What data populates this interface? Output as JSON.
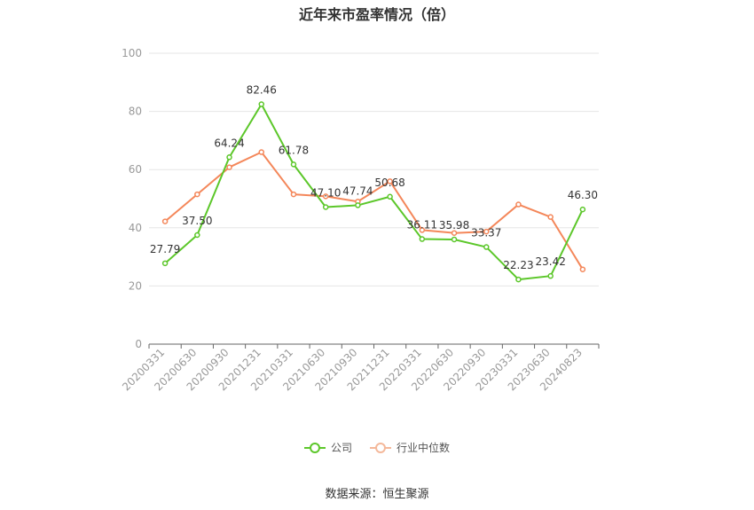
{
  "chart_data": {
    "type": "line",
    "title": "近年来市盈率情况（倍）",
    "categories": [
      "20200331",
      "20200630",
      "20200930",
      "20201231",
      "20210331",
      "20210630",
      "20210930",
      "20211231",
      "20220331",
      "20220630",
      "20220930",
      "20230331",
      "20230630",
      "20240823"
    ],
    "series": [
      {
        "name": "公司",
        "color": "#5cc72a",
        "values": [
          27.79,
          37.5,
          64.24,
          82.46,
          61.78,
          47.1,
          47.74,
          50.68,
          36.11,
          35.98,
          33.37,
          22.23,
          23.42,
          46.3
        ],
        "labels": [
          "27.79",
          "37.50",
          "64.24",
          "82.46",
          "61.78",
          "47.10",
          "47.74",
          "50.68",
          "36.11",
          "35.98",
          "33.37",
          "22.23",
          "23.42",
          "46.30"
        ]
      },
      {
        "name": "行业中位数",
        "color": "#f4875a",
        "values": [
          42.2,
          51.5,
          60.8,
          66.0,
          51.5,
          50.8,
          49.0,
          56.0,
          39.2,
          38.2,
          38.7,
          48.0,
          43.7,
          25.7
        ]
      }
    ],
    "ylim": [
      0,
      100
    ],
    "yticks": [
      0,
      20,
      40,
      60,
      80,
      100
    ],
    "grid": true,
    "legend_position": "bottom"
  },
  "source": "数据来源：恒生聚源"
}
